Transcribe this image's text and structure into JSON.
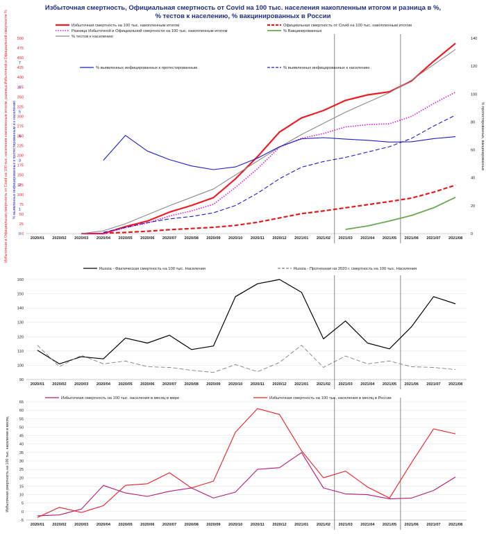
{
  "title": {
    "line1": "Избыточная смертность, Официальная смертность от Covid на 100 тыс. населения накопленным итогом и разница в %,",
    "line2": "% тестов к населению, % вакцинированных в России"
  },
  "months": [
    "2020/01",
    "2020/02",
    "2020/03",
    "2020/04",
    "2020/05",
    "2020/06",
    "2020/07",
    "2020/08",
    "2020/09",
    "2020/10",
    "2020/11",
    "2020/12",
    "2021/01",
    "2021/02",
    "2021/03",
    "2021/04",
    "2021/05",
    "2021/06",
    "2021/07",
    "2021/08"
  ],
  "chart_data": [
    {
      "type": "line",
      "x": [
        "2020/01",
        "2020/02",
        "2020/03",
        "2020/04",
        "2020/05",
        "2020/06",
        "2020/07",
        "2020/08",
        "2020/09",
        "2020/10",
        "2020/11",
        "2020/12",
        "2021/01",
        "2021/02",
        "2021/03",
        "2021/04",
        "2021/05",
        "2021/06",
        "2021/07",
        "2021/08"
      ],
      "left_ticks": [
        0,
        25,
        50,
        75,
        100,
        125,
        150,
        175,
        200,
        225,
        250,
        275,
        300,
        325,
        350,
        375,
        400,
        425,
        450,
        475,
        500
      ],
      "inner_ticks": [
        0,
        1,
        2,
        3,
        4,
        5,
        6,
        7
      ],
      "right_ticks": [
        0,
        20,
        40,
        60,
        80,
        100,
        120,
        140
      ],
      "ylim_left": [
        0,
        500
      ],
      "ylim_inner": [
        0,
        8
      ],
      "ylim_right": [
        0,
        140
      ],
      "vlines": [
        "2021/02",
        "2021/05"
      ],
      "ylabel_left": "Избыточная и Официальная смертность от Covid на 100 тыс. населения накопленным итогом, разница Избыточной и Официальной смертности %",
      "ylabel_inner": "% выявленных инфицированных к протестированным и к населению",
      "ylabel_right": "% протестированных, вакцинированных",
      "series": [
        {
          "name": "Избыточная смертность на 100 тыс. накопленным итогом",
          "axis": "left",
          "color": "#ee1c25",
          "style": "solid",
          "width": 2.2,
          "values": [
            null,
            null,
            0,
            0,
            18,
            32,
            55,
            72,
            92,
            140,
            197,
            260,
            296,
            315,
            341,
            355,
            363,
            391,
            441,
            487
          ]
        },
        {
          "name": "Официальная смертность от Covid на 100 тыс. накопленным итогом",
          "axis": "left",
          "color": "#e41a1c",
          "style": "dash",
          "width": 2.2,
          "values": [
            null,
            null,
            null,
            1,
            3,
            6,
            10,
            13,
            16,
            21,
            29,
            40,
            51,
            58,
            66,
            74,
            82,
            91,
            106,
            124
          ]
        },
        {
          "name": "Разница Избыточной и Официальной смертности на 100 тыс. накопленным итогом",
          "axis": "left",
          "color": "#e600e6",
          "style": "dot",
          "width": 1.6,
          "values": [
            null,
            null,
            0,
            0,
            15,
            27,
            45,
            58,
            75,
            118,
            166,
            221,
            244,
            256,
            273,
            279,
            281,
            300,
            333,
            362
          ]
        },
        {
          "name": "% Вакцинированных",
          "axis": "right",
          "color": "#6aa84f",
          "style": "solid",
          "width": 1.8,
          "values": [
            null,
            null,
            null,
            null,
            null,
            null,
            null,
            null,
            null,
            null,
            null,
            null,
            null,
            null,
            3,
            5.5,
            9,
            13,
            18.5,
            26
          ]
        },
        {
          "name": "% тестов к населению",
          "axis": "right",
          "color": "#8a8a8a",
          "style": "solid",
          "width": 1.1,
          "values": [
            null,
            null,
            0,
            2,
            7,
            13.5,
            20,
            26,
            32,
            42,
            52,
            62,
            71,
            79,
            87,
            94,
            101,
            110,
            121,
            132
          ]
        },
        {
          "name": "% выявленных инфицированных к протестированным",
          "axis": "inner",
          "color": "#1c1cc8",
          "style": "solid",
          "width": 1.1,
          "values": [
            null,
            null,
            null,
            3,
            4.02,
            3.38,
            3.03,
            2.77,
            2.62,
            2.73,
            3.09,
            3.56,
            3.88,
            3.93,
            3.87,
            3.82,
            3.75,
            3.76,
            3.89,
            3.97
          ]
        },
        {
          "name": "% выявленных инфицированных к населению",
          "axis": "inner",
          "color": "#1c1cc8",
          "style": "dash",
          "width": 1.1,
          "values": [
            null,
            null,
            null,
            0.05,
            0.25,
            0.45,
            0.6,
            0.7,
            0.85,
            1.15,
            1.65,
            2.25,
            2.72,
            2.95,
            3.12,
            3.34,
            3.56,
            3.9,
            4.4,
            4.85
          ]
        }
      ]
    },
    {
      "type": "line",
      "x": [
        "2020/01",
        "2020/02",
        "2020/03",
        "2020/04",
        "2020/05",
        "2020/06",
        "2020/07",
        "2020/08",
        "2020/09",
        "2020/10",
        "2020/11",
        "2020/12",
        "2021/01",
        "2021/02",
        "2021/03",
        "2021/04",
        "2021/05",
        "2021/06",
        "2021/07",
        "2021/08"
      ],
      "ticks": [
        90,
        100,
        110,
        120,
        130,
        140,
        150,
        160
      ],
      "ylim": [
        90,
        160
      ],
      "vlines": [
        "2021/02",
        "2021/05"
      ],
      "series": [
        {
          "name": "Russia - Фактическая смертность на 100 тыс. Населения",
          "color": "#000000",
          "style": "solid",
          "width": 1.2,
          "values": [
            110.5,
            101,
            106,
            104.5,
            119,
            115.5,
            121,
            111,
            113.5,
            148,
            157,
            160,
            151,
            118.5,
            131,
            115.5,
            111.5,
            127,
            148,
            143
          ]
        },
        {
          "name": "Russia - Прогнозная на 2020 г. смертность на 100 тыс. Населения",
          "color": "#7f7f7f",
          "style": "dash",
          "width": 0.9,
          "values": [
            114,
            99,
            107,
            101,
            103,
            99,
            98.5,
            96.5,
            95,
            100.5,
            95.5,
            102,
            114,
            98.5,
            106.5,
            101,
            103,
            99,
            98.5,
            97
          ]
        }
      ]
    },
    {
      "type": "line",
      "x": [
        "2020/01",
        "2020/02",
        "2020/03",
        "2020/04",
        "2020/05",
        "2020/06",
        "2020/07",
        "2020/08",
        "2020/09",
        "2020/10",
        "2020/11",
        "2020/12",
        "2021/01",
        "2021/02",
        "2021/03",
        "2021/04",
        "2021/05",
        "2021/06",
        "2021/07",
        "2021/08"
      ],
      "ticks": [
        -5,
        0,
        5,
        10,
        15,
        20,
        25,
        30,
        35,
        40,
        45,
        50,
        55,
        60,
        65
      ],
      "ylim": [
        -5,
        65
      ],
      "vlines": [
        "2021/02",
        "2021/05"
      ],
      "ylabel": "Избыточная смертность на 100 тыс. населения в месяц",
      "series": [
        {
          "name": "Избыточная смертность на 100 тыс. населения в месяц в мире",
          "color": "#b3197a",
          "style": "solid",
          "width": 1.1,
          "values": [
            -2.5,
            -2,
            1.5,
            15.5,
            11,
            9,
            12,
            14,
            8,
            11.5,
            25,
            26,
            35,
            14,
            10.5,
            10,
            7.5,
            8,
            12.5,
            20.5
          ]
        },
        {
          "name": "Избыточная смертность на 100 тыс. населения в месяц в России",
          "color": "#ee1c25",
          "style": "solid",
          "width": 1.1,
          "values": [
            -3.5,
            2.5,
            -0.5,
            3.5,
            15.5,
            16.5,
            23,
            14,
            18,
            47,
            61,
            57.5,
            36,
            20,
            24,
            14.5,
            8,
            29,
            49,
            46
          ]
        }
      ]
    }
  ]
}
